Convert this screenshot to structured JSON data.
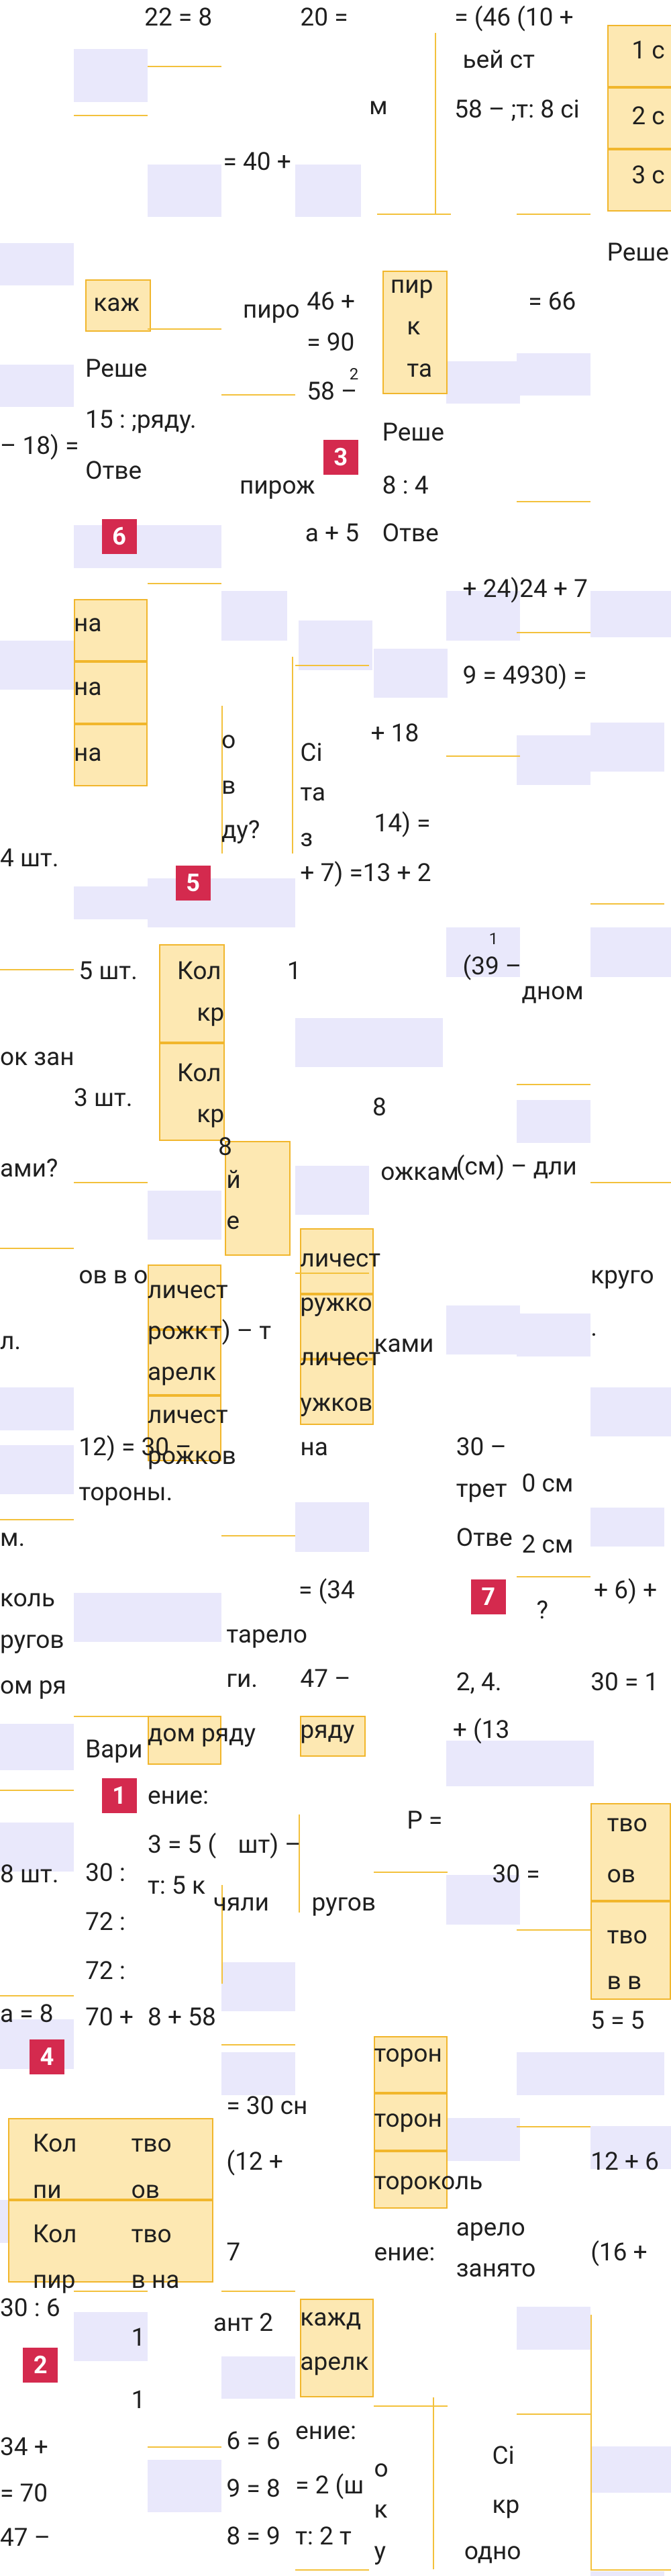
{
  "fragments": [
    "22 = 8",
    "20 =",
    "= (46 (10 +",
    "1 с",
    "ьей ст",
    "м",
    "58 – ;т: 8 сі",
    "2 с",
    "= 40 +",
    "3 с",
    "Реше",
    "каж",
    "пиро",
    "46 +",
    "пир",
    "к",
    "та",
    "= 66",
    "= 90",
    "Реше",
    "58 –",
    "2",
    "15 : ;ряду.",
    "Реше",
    "– 18) =",
    "Отве",
    "пирож",
    "8 : 4",
    "а + 5",
    "Отве",
    "+ 24)24 + 7",
    "на",
    "9 = 4930) =",
    "о",
    "Сі",
    "+ 18",
    "на",
    "на",
    "в",
    "та",
    "14) =",
    "ду?",
    "з",
    "4 шт.",
    "+ 7) =13 + 2",
    "(39 –",
    "1",
    "5 шт.",
    "Кол",
    "1",
    "кр",
    "дном",
    "ок зан",
    "Кол",
    "3 шт.",
    "кр",
    "8",
    "8",
    "й",
    "е",
    "ами?",
    "ожкам",
    "(см) – дли",
    "ов в о",
    "личест",
    "ружко",
    "круго",
    "личест",
    "рожк",
    "т) – т",
    "л.",
    "личест",
    "ками",
    ".",
    "арелк",
    "личест",
    "ужков",
    "рожков",
    "12) = 30 –",
    "на",
    "30 –",
    "тороны.",
    "трет",
    "0 см",
    "м.",
    "Отве",
    "2 см",
    "= (34",
    "коль",
    "?",
    "+ 6) +",
    "ругов",
    "тарело",
    "ом ря",
    "ги.",
    "47 –",
    "2, 4.",
    "30 = 1",
    "дом ряду",
    "ряду",
    "+ (13",
    "Вари",
    "ение:",
    "Р =",
    "3 = 5 (",
    "шт) –",
    "т: 5 к",
    "чяли",
    "ругов",
    "8 шт.",
    "30 :",
    "72 :",
    "тво",
    "ов",
    "30 =",
    "тво",
    "в в",
    "72 :",
    "а = 8",
    "70 +",
    "8 + 58",
    "5 = 5",
    "торон",
    "= 30 сн",
    "торон",
    "Кол",
    "тво",
    "(12 +",
    "12 + 6",
    "пи",
    "ов",
    "тороколь",
    "арело",
    "Кол",
    "тво",
    "7",
    "ение:",
    "занято",
    "(16 +",
    "пир",
    "в на",
    "30 : 6",
    "1",
    "ант 2",
    "кажд",
    "арелк",
    "1",
    "34 +",
    "6 = 6",
    "9 = 8",
    "8 = 9",
    "ение:",
    "= 2 (ш",
    "т: 2 т",
    "о",
    "к",
    "у",
    "Сі",
    "кр",
    "одно",
    "= 70",
    "47 –"
  ],
  "badges": [
    "6",
    "3",
    "5",
    "7",
    "1",
    "4",
    "2"
  ]
}
